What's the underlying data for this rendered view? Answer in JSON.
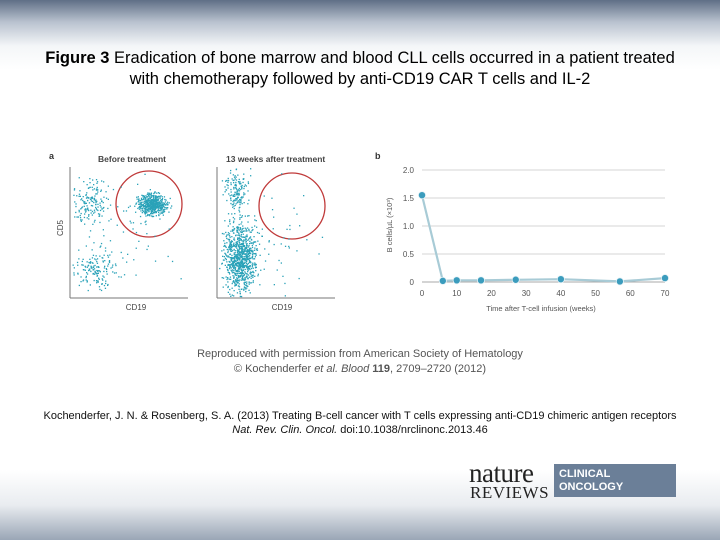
{
  "title": {
    "label": "Figure 3",
    "text": "Eradication of bone marrow and blood CLL cells occurred in a patient treated with chemotherapy followed by anti-CD19 CAR T cells and IL‑2"
  },
  "panel_a": {
    "label": "a",
    "before_title": "Before treatment",
    "after_title": "13 weeks after treatment",
    "x_label_left": "CD19",
    "x_label_right": "CD19",
    "y_label": "CD5"
  },
  "panel_b": {
    "label": "b"
  },
  "chart_data": {
    "type": "line",
    "title": "",
    "xlabel": "Time after T-cell infusion (weeks)",
    "ylabel": "B cells/µL (×10³)",
    "x": [
      0,
      6,
      10,
      17,
      27,
      40,
      57,
      70
    ],
    "y": [
      1.55,
      0.02,
      0.03,
      0.03,
      0.04,
      0.05,
      0.01,
      0.07
    ],
    "xlim": [
      0,
      70
    ],
    "ylim": [
      0,
      2.0
    ],
    "xticks": [
      "0",
      "10",
      "20",
      "30",
      "40",
      "50",
      "60",
      "70"
    ],
    "yticks": [
      "0",
      "0.5",
      "1.0",
      "1.5",
      "2.0"
    ],
    "line_color": "#a8cbd6",
    "marker_color": "#3b9cbd",
    "dot_color": "#2aa2b8",
    "circle_color": "#c03a3a"
  },
  "credit": {
    "line1": "Reproduced with permission from American Society of Hematology",
    "line2_prefix": "© Kochenderfer ",
    "line2_italic": "et al. Blood ",
    "line2_bold": "119",
    "line2_suffix": ", 2709–2720 (2012)"
  },
  "citation": {
    "line1": "Kochenderfer, J. N. & Rosenberg, S. A. (2013) Treating B‑cell cancer with T cells expressing anti-CD19 chimeric antigen receptors",
    "journal": "Nat. Rev. Clin. Oncol.",
    "doi": " doi:10.1038/nrclinonc.2013.46"
  },
  "logo": {
    "word1": "nature",
    "word2": "REVIEWS",
    "box_line1": "CLINICAL",
    "box_line2": "ONCOLOGY"
  }
}
